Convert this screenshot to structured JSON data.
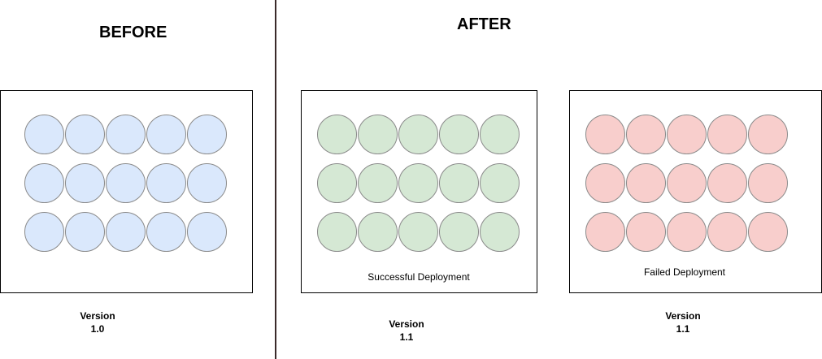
{
  "headings": {
    "before": "BEFORE",
    "after": "AFTER"
  },
  "panels": [
    {
      "id": "before",
      "fill": "#dae8fc",
      "caption": "",
      "version_label": "Version",
      "version_number": "1.0"
    },
    {
      "id": "success",
      "fill": "#d5e8d4",
      "caption": "Successful Deployment",
      "version_label": "Version",
      "version_number": "1.1"
    },
    {
      "id": "failed",
      "fill": "#f8cecc",
      "caption": "Failed Deployment",
      "version_label": "Version",
      "version_number": "1.1"
    }
  ],
  "grid": {
    "rows": 3,
    "cols": 5
  }
}
